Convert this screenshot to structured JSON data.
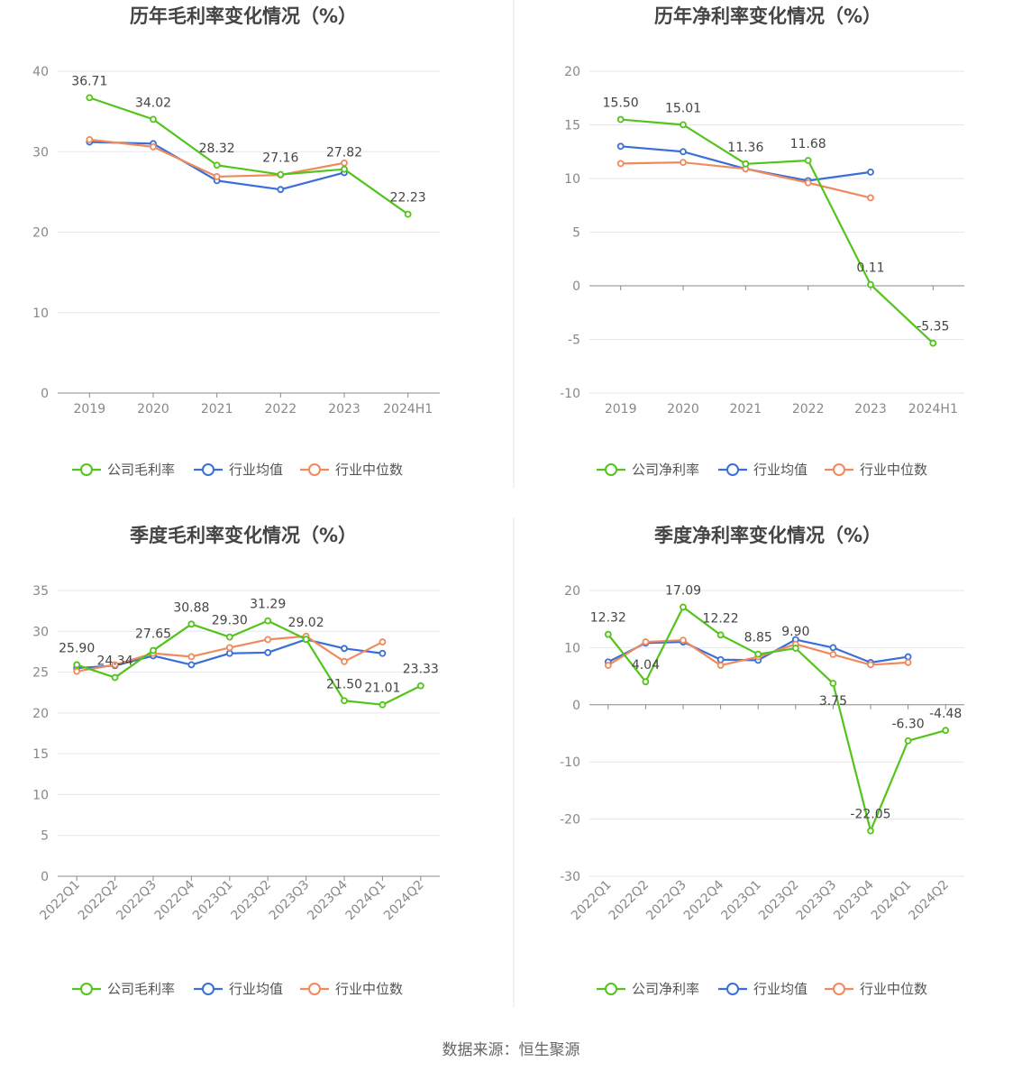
{
  "colors": {
    "company": "#52c41a",
    "industry_avg": "#3a6fd8",
    "industry_median": "#f08a5d",
    "grid": "#e6e6ee",
    "axis": "#888888",
    "divider": "#e6e6e6"
  },
  "footer": {
    "source": "数据来源：恒生聚源"
  },
  "chart_data": [
    {
      "type": "line",
      "title": "历年毛利率变化情况（%）",
      "categories": [
        "2019",
        "2020",
        "2021",
        "2022",
        "2023",
        "2024H1"
      ],
      "ylim": [
        0,
        40
      ],
      "yticks": [
        0,
        10,
        20,
        30,
        40
      ],
      "grid": true,
      "legend_position": "bottom",
      "series": [
        {
          "name": "公司毛利率",
          "key": "company",
          "labeled": true,
          "values": [
            36.71,
            34.02,
            28.32,
            27.16,
            27.82,
            22.23
          ],
          "labels": [
            "36.71",
            "34.02",
            "28.32",
            "27.16",
            "27.82",
            "22.23"
          ]
        },
        {
          "name": "行业均值",
          "key": "industry_avg",
          "labeled": false,
          "values": [
            31.2,
            31.0,
            26.4,
            25.3,
            27.4,
            null
          ]
        },
        {
          "name": "行业中位数",
          "key": "industry_median",
          "labeled": false,
          "values": [
            31.5,
            30.6,
            26.9,
            27.1,
            28.6,
            null
          ]
        }
      ]
    },
    {
      "type": "line",
      "title": "历年净利率变化情况（%）",
      "categories": [
        "2019",
        "2020",
        "2021",
        "2022",
        "2023",
        "2024H1"
      ],
      "ylim": [
        -10,
        20
      ],
      "yticks": [
        -10,
        -5,
        0,
        5,
        10,
        15,
        20
      ],
      "grid": true,
      "legend_position": "bottom",
      "series": [
        {
          "name": "公司净利率",
          "key": "company",
          "labeled": true,
          "values": [
            15.5,
            15.01,
            11.36,
            11.68,
            0.11,
            -5.35
          ],
          "labels": [
            "15.50",
            "15.01",
            "11.36",
            "11.68",
            "0.11",
            "-5.35"
          ]
        },
        {
          "name": "行业均值",
          "key": "industry_avg",
          "labeled": false,
          "values": [
            13.0,
            12.5,
            10.9,
            9.8,
            10.6,
            null
          ]
        },
        {
          "name": "行业中位数",
          "key": "industry_median",
          "labeled": false,
          "values": [
            11.4,
            11.5,
            10.9,
            9.6,
            8.2,
            null
          ]
        }
      ]
    },
    {
      "type": "line",
      "title": "季度毛利率变化情况（%）",
      "categories": [
        "2022Q1",
        "2022Q2",
        "2022Q3",
        "2022Q4",
        "2023Q1",
        "2023Q2",
        "2023Q3",
        "2023Q4",
        "2024Q1",
        "2024Q2"
      ],
      "ylim": [
        0,
        35
      ],
      "yticks": [
        0,
        5,
        10,
        15,
        20,
        25,
        30,
        35
      ],
      "grid": true,
      "legend_position": "bottom",
      "series": [
        {
          "name": "公司毛利率",
          "key": "company",
          "labeled": true,
          "values": [
            25.9,
            24.34,
            27.65,
            30.88,
            29.3,
            31.29,
            29.02,
            21.5,
            21.01,
            23.33
          ],
          "labels": [
            "25.90",
            "24.34",
            "27.65",
            "30.88",
            "29.30",
            "31.29",
            "29.02",
            "21.50",
            "21.01",
            "23.33"
          ]
        },
        {
          "name": "行业均值",
          "key": "industry_avg",
          "labeled": false,
          "values": [
            25.5,
            25.8,
            27.0,
            25.9,
            27.3,
            27.4,
            29.0,
            27.9,
            27.3,
            null
          ]
        },
        {
          "name": "行业中位数",
          "key": "industry_median",
          "labeled": false,
          "values": [
            25.1,
            25.9,
            27.3,
            26.9,
            28.0,
            29.0,
            29.4,
            26.3,
            28.7,
            null
          ]
        }
      ]
    },
    {
      "type": "line",
      "title": "季度净利率变化情况（%）",
      "categories": [
        "2022Q1",
        "2022Q2",
        "2022Q3",
        "2022Q4",
        "2023Q1",
        "2023Q2",
        "2023Q3",
        "2023Q4",
        "2024Q1",
        "2024Q2"
      ],
      "ylim": [
        -30,
        20
      ],
      "yticks": [
        -30,
        -20,
        -10,
        0,
        10,
        20
      ],
      "grid": true,
      "legend_position": "bottom",
      "series": [
        {
          "name": "公司净利率",
          "key": "company",
          "labeled": true,
          "values": [
            12.32,
            4.04,
            17.09,
            12.22,
            8.85,
            9.9,
            3.75,
            -22.05,
            -6.3,
            -4.48
          ],
          "labels": [
            "12.32",
            "4.04",
            "17.09",
            "12.22",
            "8.85",
            "9.90",
            "3.75",
            "-22.05",
            "-6.30",
            "-4.48"
          ]
        },
        {
          "name": "行业均值",
          "key": "industry_avg",
          "labeled": false,
          "values": [
            7.5,
            10.8,
            11.0,
            7.9,
            7.8,
            11.4,
            10.0,
            7.4,
            8.4,
            null
          ]
        },
        {
          "name": "行业中位数",
          "key": "industry_median",
          "labeled": false,
          "values": [
            6.9,
            11.0,
            11.3,
            6.9,
            8.4,
            10.6,
            8.8,
            7.0,
            7.4,
            null
          ]
        }
      ]
    }
  ]
}
